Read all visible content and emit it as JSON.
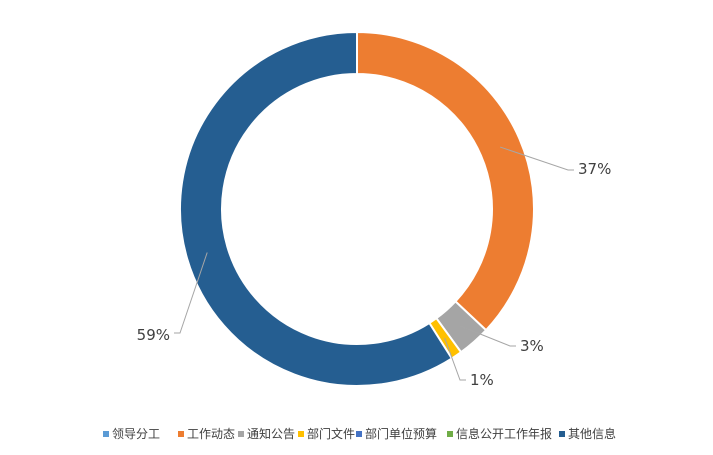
{
  "chart_data": {
    "type": "pie",
    "donut": true,
    "categories": [
      "领导分工",
      "工作动态",
      "通知公告",
      "部门文件",
      "部门单位预算",
      "信息公开工作年报",
      "其他信息"
    ],
    "values": [
      0,
      37,
      3,
      1,
      0,
      0,
      59
    ],
    "labels_shown": [
      "",
      "37%",
      "3%",
      "1%",
      "",
      "",
      "59%"
    ],
    "colors": [
      "#5B9BD5",
      "#ED7D31",
      "#A5A5A5",
      "#FFC000",
      "#4472C4",
      "#70AD47",
      "#255E91"
    ],
    "legend_position": "bottom"
  }
}
